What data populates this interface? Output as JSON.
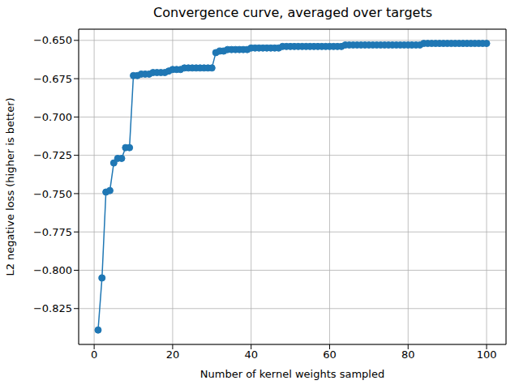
{
  "chart_data": {
    "type": "line",
    "title": "Convergence curve, averaged over targets",
    "x_label": "Number of kernel weights sampled",
    "y_label": "L2 negative loss (higher is better)",
    "x": [
      1,
      2,
      3,
      4,
      5,
      6,
      7,
      8,
      9,
      10,
      11,
      12,
      13,
      14,
      15,
      16,
      17,
      18,
      19,
      20,
      21,
      22,
      23,
      24,
      25,
      26,
      27,
      28,
      29,
      30,
      31,
      32,
      33,
      34,
      35,
      36,
      37,
      38,
      39,
      40,
      41,
      42,
      43,
      44,
      45,
      46,
      47,
      48,
      49,
      50,
      51,
      52,
      53,
      54,
      55,
      56,
      57,
      58,
      59,
      60,
      61,
      62,
      63,
      64,
      65,
      66,
      67,
      68,
      69,
      70,
      71,
      72,
      73,
      74,
      75,
      76,
      77,
      78,
      79,
      80,
      81,
      82,
      83,
      84,
      85,
      86,
      87,
      88,
      89,
      90,
      91,
      92,
      93,
      94,
      95,
      96,
      97,
      98,
      99,
      100
    ],
    "values": [
      -0.839,
      -0.805,
      -0.749,
      -0.748,
      -0.73,
      -0.727,
      -0.727,
      -0.72,
      -0.72,
      -0.673,
      -0.673,
      -0.672,
      -0.672,
      -0.672,
      -0.671,
      -0.671,
      -0.671,
      -0.671,
      -0.67,
      -0.669,
      -0.669,
      -0.669,
      -0.668,
      -0.668,
      -0.668,
      -0.668,
      -0.668,
      -0.668,
      -0.668,
      -0.668,
      -0.658,
      -0.657,
      -0.657,
      -0.656,
      -0.656,
      -0.656,
      -0.656,
      -0.656,
      -0.656,
      -0.655,
      -0.655,
      -0.655,
      -0.655,
      -0.655,
      -0.655,
      -0.655,
      -0.655,
      -0.654,
      -0.654,
      -0.654,
      -0.654,
      -0.654,
      -0.654,
      -0.654,
      -0.654,
      -0.654,
      -0.654,
      -0.654,
      -0.654,
      -0.654,
      -0.654,
      -0.654,
      -0.654,
      -0.653,
      -0.653,
      -0.653,
      -0.653,
      -0.653,
      -0.653,
      -0.653,
      -0.653,
      -0.653,
      -0.653,
      -0.653,
      -0.653,
      -0.653,
      -0.653,
      -0.653,
      -0.653,
      -0.653,
      -0.653,
      -0.653,
      -0.653,
      -0.652,
      -0.652,
      -0.652,
      -0.652,
      -0.652,
      -0.652,
      -0.652,
      -0.652,
      -0.652,
      -0.652,
      -0.652,
      -0.652,
      -0.652,
      -0.652,
      -0.652,
      -0.652,
      -0.652
    ],
    "color": "#1f77b4",
    "marker": "o",
    "line_style": "solid",
    "xlim": [
      -3.95,
      104.95
    ],
    "xticks": [
      0,
      20,
      40,
      60,
      80,
      100
    ],
    "ylim": [
      -0.8484,
      -0.6427
    ],
    "yticks": [
      {
        "value": -0.825,
        "label": "−0.825"
      },
      {
        "value": -0.8,
        "label": "−0.800"
      },
      {
        "value": -0.775,
        "label": "−0.775"
      },
      {
        "value": -0.75,
        "label": "−0.750"
      },
      {
        "value": -0.725,
        "label": "−0.725"
      },
      {
        "value": -0.7,
        "label": "−0.700"
      },
      {
        "value": -0.675,
        "label": "−0.675"
      },
      {
        "value": -0.65,
        "label": "−0.650"
      }
    ],
    "grid": true
  }
}
